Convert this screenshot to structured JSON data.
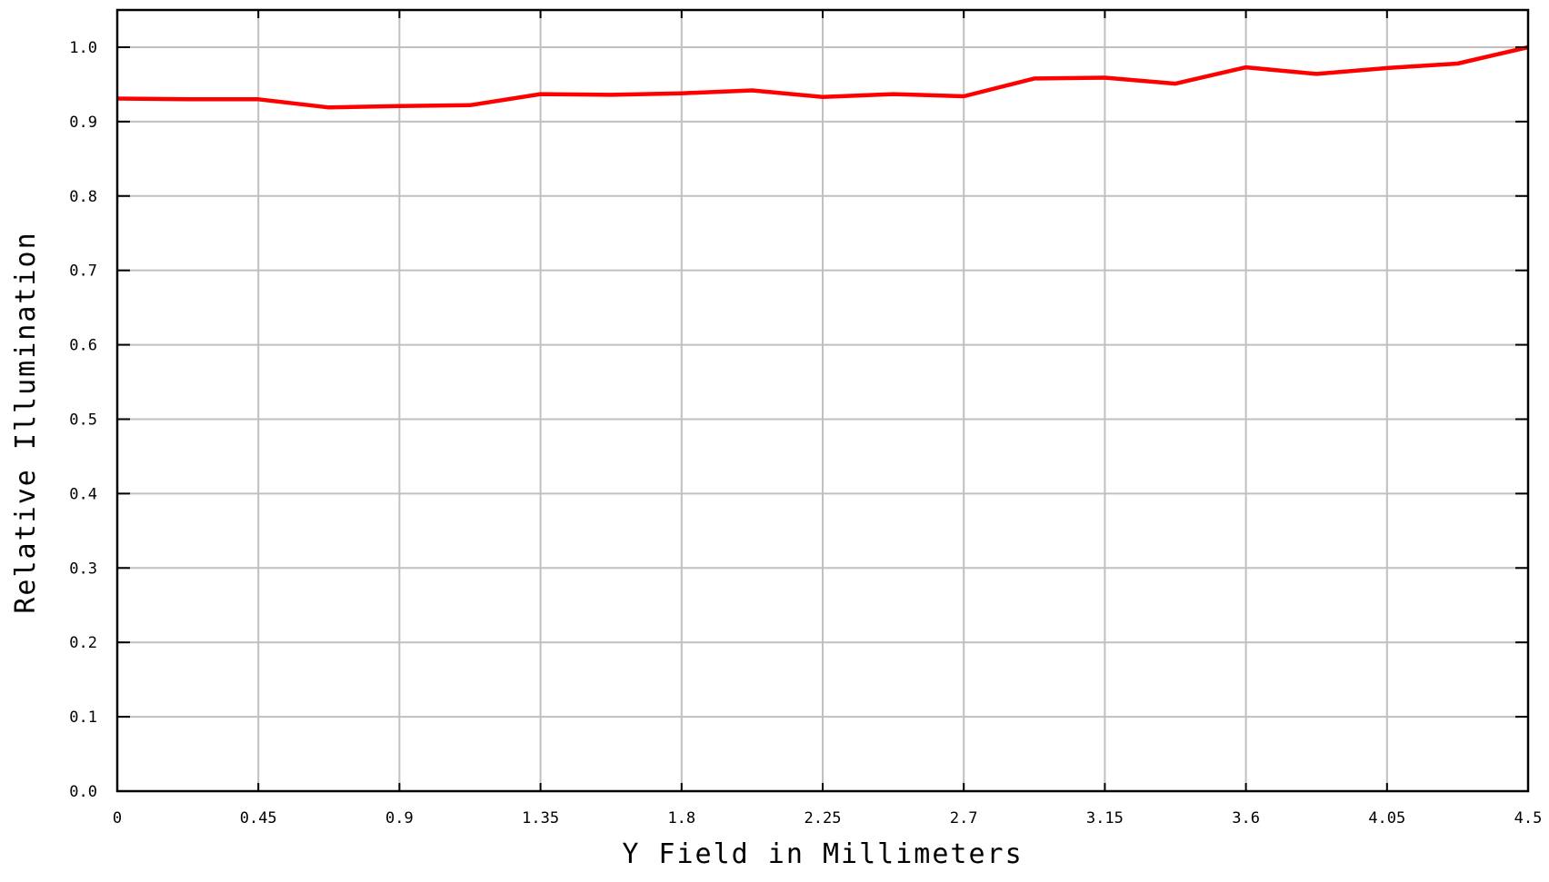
{
  "chart_data": {
    "type": "line",
    "xlabel": "Y Field in Millimeters",
    "ylabel": "Relative Illumination",
    "xlim": [
      0,
      4.5
    ],
    "ylim": [
      0,
      1.0
    ],
    "x_ticks": [
      "0",
      "0.45",
      "0.9",
      "1.35",
      "1.8",
      "2.25",
      "2.7",
      "3.15",
      "3.6",
      "4.05",
      "4.5"
    ],
    "y_ticks": [
      "0.0",
      "0.1",
      "0.2",
      "0.3",
      "0.4",
      "0.5",
      "0.6",
      "0.7",
      "0.8",
      "0.9",
      "1.0"
    ],
    "grid": true,
    "series": [
      {
        "color": "#ff0000",
        "x": [
          0,
          0.225,
          0.45,
          0.675,
          0.9,
          1.125,
          1.35,
          1.575,
          1.8,
          2.025,
          2.25,
          2.475,
          2.7,
          2.925,
          3.15,
          3.375,
          3.6,
          3.825,
          4.05,
          4.275,
          4.5
        ],
        "y": [
          0.931,
          0.93,
          0.93,
          0.919,
          0.921,
          0.922,
          0.937,
          0.936,
          0.938,
          0.942,
          0.933,
          0.937,
          0.934,
          0.958,
          0.959,
          0.951,
          0.973,
          0.964,
          0.972,
          0.978,
          1.0
        ]
      }
    ]
  }
}
